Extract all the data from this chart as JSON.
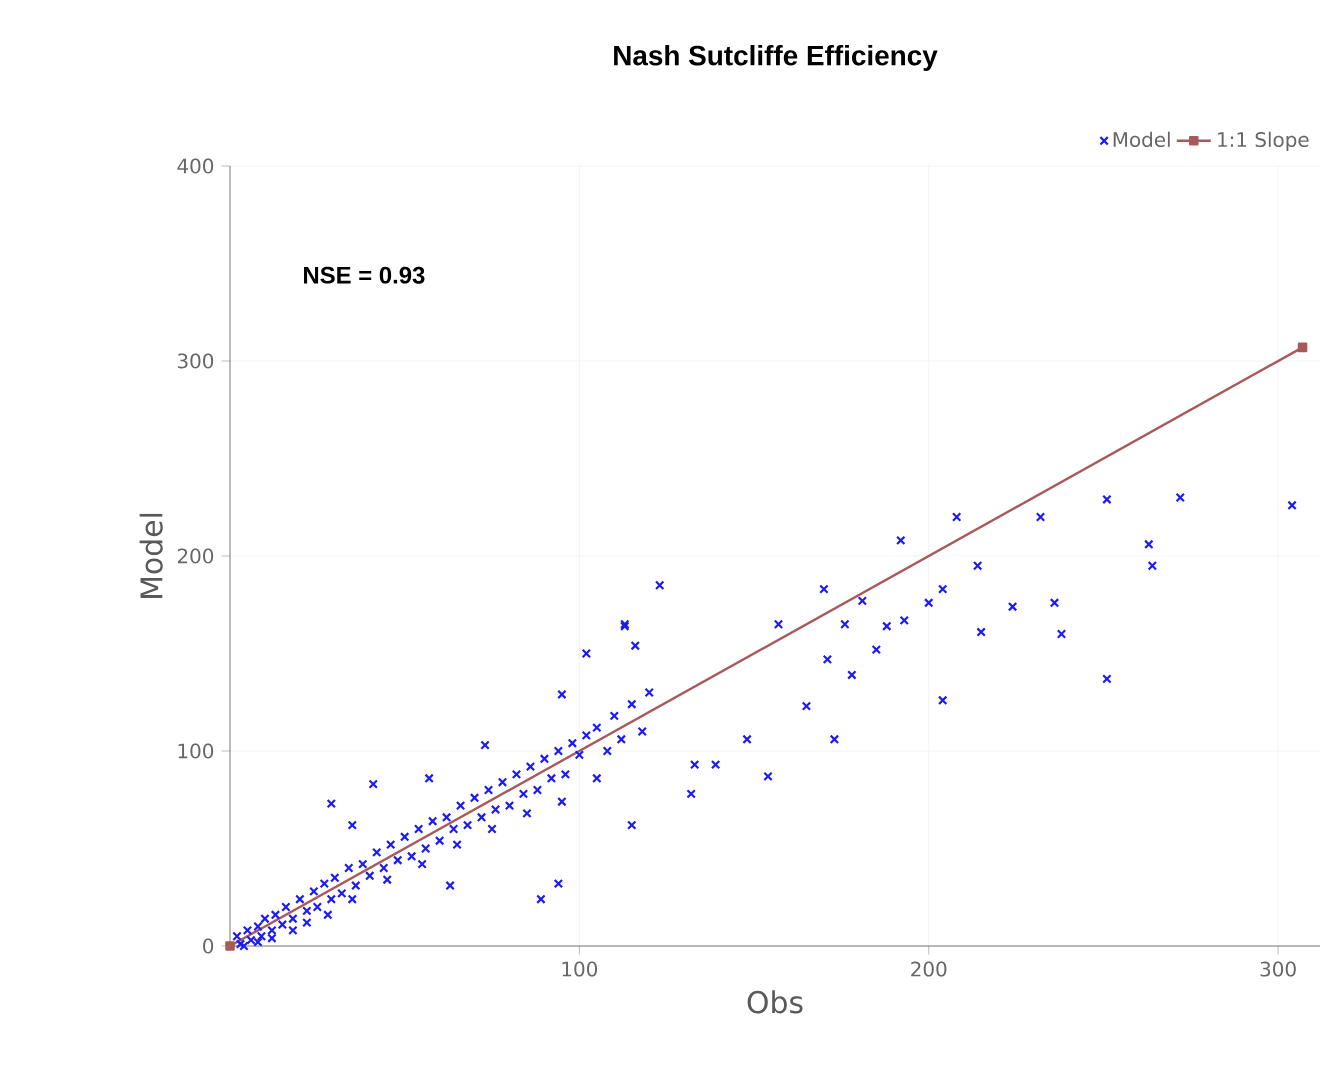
{
  "chart_data": {
    "type": "scatter",
    "title": "Nash Sutcliffe Efficiency",
    "xlabel": "Obs",
    "ylabel": "Model",
    "annotations": [
      "NSE = 0.93"
    ],
    "xlim": [
      0,
      312
    ],
    "ylim": [
      0,
      400
    ],
    "xticks": [
      100,
      200,
      300
    ],
    "yticks": [
      0,
      100,
      200,
      300,
      400
    ],
    "grid": true,
    "legend": "top right",
    "series": [
      {
        "name": "Model",
        "marker": "cross",
        "color": "#1c1cf0",
        "x": [
          2,
          3,
          5,
          6,
          8,
          9,
          10,
          12,
          13,
          15,
          16,
          18,
          20,
          22,
          24,
          25,
          27,
          29,
          30,
          32,
          34,
          36,
          38,
          40,
          42,
          44,
          46,
          48,
          50,
          52,
          54,
          56,
          58,
          60,
          62,
          64,
          66,
          68,
          70,
          72,
          74,
          76,
          78,
          80,
          82,
          84,
          86,
          88,
          90,
          92,
          94,
          96,
          98,
          100,
          102,
          105,
          108,
          110,
          112,
          115,
          118,
          120,
          4,
          8,
          12,
          18,
          22,
          28,
          35,
          45,
          55,
          65,
          75,
          85,
          95,
          105,
          29,
          35,
          41,
          57,
          63,
          73,
          89,
          94,
          95,
          102,
          113,
          113,
          115,
          116,
          123,
          132,
          133,
          139,
          148,
          154,
          157,
          165,
          170,
          171,
          173,
          176,
          178,
          181,
          185,
          188,
          192,
          193,
          200,
          204,
          204,
          208,
          214,
          215,
          224,
          232,
          236,
          238,
          251,
          251,
          263,
          264,
          272,
          304
        ],
        "values": [
          5,
          1,
          8,
          3,
          10,
          5,
          14,
          8,
          16,
          11,
          20,
          14,
          24,
          18,
          28,
          20,
          32,
          24,
          35,
          27,
          40,
          31,
          42,
          36,
          48,
          40,
          52,
          44,
          56,
          46,
          60,
          50,
          64,
          54,
          66,
          60,
          72,
          62,
          76,
          66,
          80,
          70,
          84,
          72,
          88,
          78,
          92,
          80,
          96,
          86,
          100,
          88,
          104,
          98,
          108,
          112,
          100,
          118,
          106,
          124,
          110,
          130,
          0,
          2,
          4,
          8,
          12,
          16,
          24,
          34,
          42,
          52,
          60,
          68,
          74,
          86,
          73,
          62,
          83,
          86,
          31,
          103,
          24,
          32,
          129,
          150,
          165,
          164,
          62,
          154,
          185,
          78,
          93,
          93,
          106,
          87,
          165,
          123,
          183,
          147,
          106,
          165,
          139,
          177,
          152,
          164,
          208,
          167,
          176,
          183,
          126,
          220,
          195,
          161,
          174,
          220,
          176,
          160,
          229,
          137,
          206,
          195,
          230,
          226
        ]
      },
      {
        "name": "1:1 Slope",
        "type": "line",
        "marker": "square",
        "color": "#a85a5a",
        "x": [
          0,
          307
        ],
        "values": [
          0,
          307
        ]
      }
    ]
  }
}
